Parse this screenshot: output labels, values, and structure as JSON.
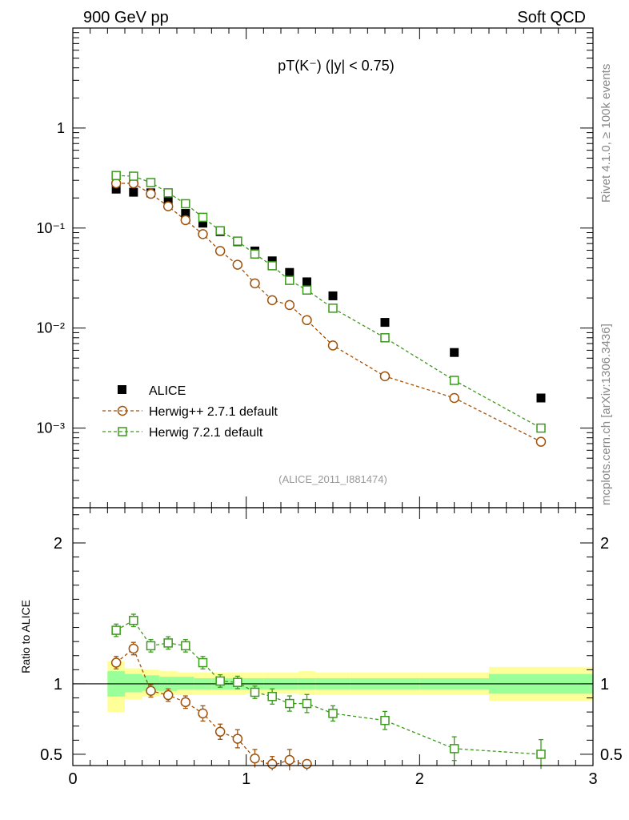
{
  "header": {
    "left": "900 GeV pp",
    "right": "Soft QCD"
  },
  "side_labels": {
    "rivet": "Rivet 4.1.0, ≥ 100k events",
    "mcplots": "mcplots.cern.ch [arXiv:1306.3436]"
  },
  "chart_data": {
    "type": "scatter",
    "title": "pT(K⁻) (|y| < 0.75)",
    "watermark": "(ALICE_2011_I881474)",
    "main": {
      "y_scale": "log",
      "ylim": [
        0.00016,
        10
      ],
      "y_tick_labels": [
        "1",
        "10⁻¹",
        "10⁻²",
        "10⁻³"
      ],
      "legend_position": "bottom-left"
    },
    "ratio": {
      "ylabel": "Ratio to ALICE",
      "ylim": [
        0.42,
        2.25
      ],
      "y_ticks": [
        0.5,
        1,
        2
      ],
      "y_tick_labels": [
        "0.5",
        "1",
        "2"
      ],
      "band_bins": [
        {
          "x0": 0.2,
          "x1": 0.3,
          "inner": [
            0.91,
            1.09
          ],
          "outer": [
            0.8,
            1.16
          ]
        },
        {
          "x0": 0.3,
          "x1": 0.4,
          "inner": [
            0.94,
            1.07
          ],
          "outer": [
            0.89,
            1.11
          ]
        },
        {
          "x0": 0.4,
          "x1": 0.5,
          "inner": [
            0.95,
            1.06
          ],
          "outer": [
            0.91,
            1.1
          ]
        },
        {
          "x0": 0.5,
          "x1": 0.6,
          "inner": [
            0.95,
            1.05
          ],
          "outer": [
            0.92,
            1.09
          ]
        },
        {
          "x0": 0.6,
          "x1": 0.7,
          "inner": [
            0.96,
            1.05
          ],
          "outer": [
            0.92,
            1.08
          ]
        },
        {
          "x0": 0.7,
          "x1": 0.8,
          "inner": [
            0.96,
            1.04
          ],
          "outer": [
            0.92,
            1.08
          ]
        },
        {
          "x0": 0.8,
          "x1": 0.9,
          "inner": [
            0.96,
            1.04
          ],
          "outer": [
            0.92,
            1.08
          ]
        },
        {
          "x0": 0.9,
          "x1": 1.0,
          "inner": [
            0.96,
            1.04
          ],
          "outer": [
            0.92,
            1.08
          ]
        },
        {
          "x0": 1.0,
          "x1": 1.1,
          "inner": [
            0.96,
            1.04
          ],
          "outer": [
            0.93,
            1.08
          ]
        },
        {
          "x0": 1.1,
          "x1": 1.2,
          "inner": [
            0.96,
            1.04
          ],
          "outer": [
            0.93,
            1.08
          ]
        },
        {
          "x0": 1.2,
          "x1": 1.3,
          "inner": [
            0.96,
            1.04
          ],
          "outer": [
            0.93,
            1.08
          ]
        },
        {
          "x0": 1.3,
          "x1": 1.4,
          "inner": [
            0.96,
            1.04
          ],
          "outer": [
            0.92,
            1.09
          ]
        },
        {
          "x0": 1.4,
          "x1": 1.6,
          "inner": [
            0.96,
            1.04
          ],
          "outer": [
            0.92,
            1.08
          ]
        },
        {
          "x0": 1.6,
          "x1": 2.0,
          "inner": [
            0.96,
            1.04
          ],
          "outer": [
            0.92,
            1.08
          ]
        },
        {
          "x0": 2.0,
          "x1": 2.4,
          "inner": [
            0.96,
            1.04
          ],
          "outer": [
            0.92,
            1.08
          ]
        },
        {
          "x0": 2.4,
          "x1": 3.0,
          "inner": [
            0.93,
            1.07
          ],
          "outer": [
            0.88,
            1.12
          ]
        }
      ]
    },
    "x": {
      "xlim": [
        0,
        3
      ],
      "ticks": [
        0,
        1,
        2,
        3
      ],
      "tick_labels": [
        "0",
        "1",
        "2",
        "3"
      ]
    },
    "series": [
      {
        "name": "ALICE",
        "style": "data",
        "color": "#000000",
        "x": [
          0.25,
          0.35,
          0.45,
          0.55,
          0.65,
          0.75,
          0.85,
          0.95,
          1.05,
          1.15,
          1.25,
          1.35,
          1.5,
          1.8,
          2.2,
          2.7
        ],
        "y": [
          0.245,
          0.228,
          0.225,
          0.183,
          0.14,
          0.112,
          0.092,
          0.073,
          0.059,
          0.047,
          0.036,
          0.029,
          0.021,
          0.0114,
          0.0057,
          0.002
        ]
      },
      {
        "name": "Herwig++ 2.7.1 default",
        "style": "circle-dashed",
        "color": "#a0520a",
        "x": [
          0.25,
          0.35,
          0.45,
          0.55,
          0.65,
          0.75,
          0.85,
          0.95,
          1.05,
          1.15,
          1.25,
          1.35,
          1.5,
          1.8,
          2.2,
          2.7
        ],
        "y": [
          0.28,
          0.28,
          0.22,
          0.165,
          0.12,
          0.087,
          0.059,
          0.043,
          0.028,
          0.019,
          0.017,
          0.012,
          0.0067,
          0.0033,
          0.002,
          0.00073
        ],
        "ratio": [
          1.15,
          1.25,
          0.95,
          0.92,
          0.87,
          0.79,
          0.66,
          0.61,
          0.47,
          0.42,
          0.46,
          0.37,
          null,
          null,
          null,
          null
        ],
        "ratio_err": [
          0.01,
          0.01,
          0.01,
          0.01,
          0.01,
          0.02,
          0.02,
          0.03,
          0.03,
          0.03,
          0.04,
          0.03,
          null,
          null,
          null,
          null
        ]
      },
      {
        "name": "Herwig 7.2.1 default",
        "style": "square-dashed",
        "color": "#3a9a1a",
        "x": [
          0.25,
          0.35,
          0.45,
          0.55,
          0.65,
          0.75,
          0.85,
          0.95,
          1.05,
          1.15,
          1.25,
          1.35,
          1.5,
          1.8,
          2.2,
          2.7
        ],
        "y": [
          0.335,
          0.33,
          0.285,
          0.225,
          0.175,
          0.128,
          0.094,
          0.074,
          0.055,
          0.042,
          0.03,
          0.024,
          0.0158,
          0.008,
          0.003,
          0.001
        ],
        "ratio": [
          1.38,
          1.45,
          1.27,
          1.29,
          1.27,
          1.15,
          1.02,
          1.01,
          0.94,
          0.91,
          0.86,
          0.86,
          0.79,
          0.74,
          0.54,
          0.5
        ],
        "ratio_err": [
          0.01,
          0.01,
          0.01,
          0.01,
          0.01,
          0.01,
          0.01,
          0.01,
          0.01,
          0.02,
          0.02,
          0.03,
          0.02,
          0.03,
          0.05,
          0.07
        ]
      }
    ]
  }
}
